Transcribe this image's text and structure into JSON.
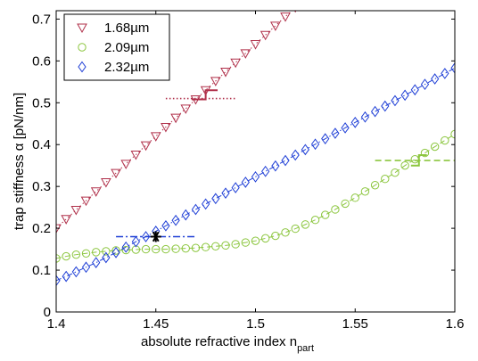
{
  "chart_data": {
    "type": "scatter",
    "title": "",
    "xlabel": "absolute refractive index n",
    "xlabel_subscript": "part",
    "ylabel": "trap stiffness α [pN/nm]",
    "xlim": [
      1.4,
      1.6
    ],
    "ylim": [
      0,
      0.72
    ],
    "xticks": [
      1.4,
      1.45,
      1.5,
      1.55,
      1.6
    ],
    "yticks": [
      0,
      0.1,
      0.2,
      0.3,
      0.4,
      0.5,
      0.6,
      0.7
    ],
    "xtick_labels": [
      "1.4",
      "1.45",
      "1.5",
      "1.55",
      "1.6"
    ],
    "ytick_labels": [
      "0",
      "0.1",
      "0.2",
      "0.3",
      "0.4",
      "0.5",
      "0.6",
      "0.7"
    ],
    "grid": false,
    "legend": "top-left",
    "series": [
      {
        "name": "1.68µm",
        "marker": "triangle-down",
        "color": "#b0304a",
        "x": [
          1.4,
          1.405,
          1.41,
          1.415,
          1.42,
          1.425,
          1.43,
          1.435,
          1.44,
          1.445,
          1.45,
          1.455,
          1.46,
          1.465,
          1.47,
          1.475,
          1.48,
          1.485,
          1.49,
          1.495,
          1.5,
          1.505,
          1.51,
          1.515,
          1.52,
          1.525
        ],
        "y": [
          0.2,
          0.222,
          0.244,
          0.266,
          0.288,
          0.31,
          0.332,
          0.354,
          0.376,
          0.398,
          0.42,
          0.442,
          0.464,
          0.486,
          0.508,
          0.53,
          0.552,
          0.574,
          0.596,
          0.618,
          0.64,
          0.662,
          0.684,
          0.706,
          0.728,
          0.75
        ]
      },
      {
        "name": "2.09µm",
        "marker": "circle",
        "color": "#8cc63f",
        "x": [
          1.4,
          1.405,
          1.41,
          1.415,
          1.42,
          1.425,
          1.43,
          1.435,
          1.44,
          1.445,
          1.45,
          1.455,
          1.46,
          1.465,
          1.47,
          1.475,
          1.48,
          1.485,
          1.49,
          1.495,
          1.5,
          1.505,
          1.51,
          1.515,
          1.52,
          1.525,
          1.53,
          1.535,
          1.54,
          1.545,
          1.55,
          1.555,
          1.56,
          1.565,
          1.57,
          1.575,
          1.58,
          1.585,
          1.59,
          1.595,
          1.6
        ],
        "y": [
          0.128,
          0.133,
          0.137,
          0.14,
          0.143,
          0.145,
          0.147,
          0.148,
          0.149,
          0.15,
          0.15,
          0.15,
          0.151,
          0.152,
          0.153,
          0.155,
          0.157,
          0.159,
          0.162,
          0.166,
          0.17,
          0.176,
          0.182,
          0.19,
          0.199,
          0.209,
          0.22,
          0.232,
          0.245,
          0.259,
          0.273,
          0.288,
          0.303,
          0.318,
          0.333,
          0.35,
          0.365,
          0.38,
          0.395,
          0.41,
          0.425
        ]
      },
      {
        "name": "2.32µm",
        "marker": "diamond",
        "color": "#1f3fd6",
        "x": [
          1.4,
          1.405,
          1.41,
          1.415,
          1.42,
          1.425,
          1.43,
          1.435,
          1.44,
          1.445,
          1.45,
          1.455,
          1.46,
          1.465,
          1.47,
          1.475,
          1.48,
          1.485,
          1.49,
          1.495,
          1.5,
          1.505,
          1.51,
          1.515,
          1.52,
          1.525,
          1.53,
          1.535,
          1.54,
          1.545,
          1.55,
          1.555,
          1.56,
          1.565,
          1.57,
          1.575,
          1.58,
          1.585,
          1.59,
          1.595,
          1.6
        ],
        "y": [
          0.075,
          0.085,
          0.096,
          0.107,
          0.118,
          0.13,
          0.142,
          0.155,
          0.168,
          0.18,
          0.193,
          0.206,
          0.219,
          0.232,
          0.245,
          0.258,
          0.271,
          0.284,
          0.297,
          0.31,
          0.323,
          0.336,
          0.349,
          0.362,
          0.375,
          0.388,
          0.401,
          0.414,
          0.427,
          0.44,
          0.453,
          0.466,
          0.479,
          0.492,
          0.505,
          0.518,
          0.531,
          0.544,
          0.557,
          0.57,
          0.583
        ]
      }
    ],
    "annotations": [
      {
        "kind": "dotted-hline",
        "color": "#b0304a",
        "x": [
          1.455,
          1.49
        ],
        "y": 0.51
      },
      {
        "kind": "step",
        "color": "#b0304a",
        "x": [
          1.468,
          1.475,
          1.475,
          1.481
        ],
        "y": [
          0.508,
          0.508,
          0.53,
          0.53
        ]
      },
      {
        "kind": "dashed-hline",
        "color": "#8cc63f",
        "x": [
          1.56,
          1.6
        ],
        "y": 0.362
      },
      {
        "kind": "step",
        "color": "#8cc63f",
        "x": [
          1.578,
          1.582,
          1.582,
          1.586
        ],
        "y": [
          0.35,
          0.35,
          0.375,
          0.375
        ]
      },
      {
        "kind": "dashdot-hline",
        "color": "#1f3fd6",
        "x": [
          1.43,
          1.47
        ],
        "y": 0.18
      },
      {
        "kind": "star",
        "color": "#000000",
        "x": 1.45,
        "y": 0.18
      }
    ]
  }
}
